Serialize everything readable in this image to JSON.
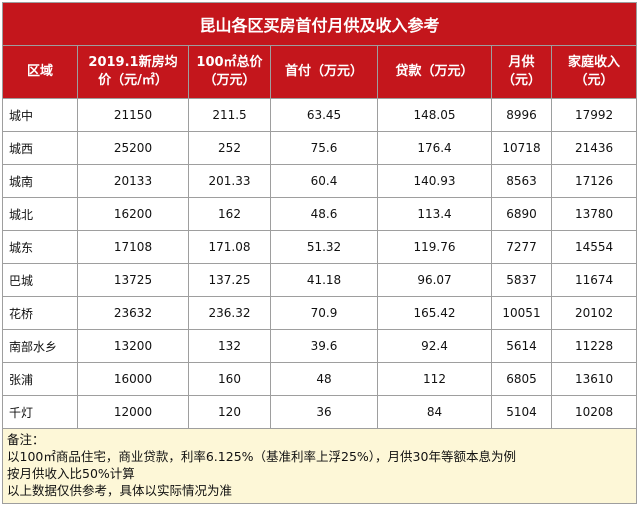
{
  "title": "昆山各区买房首付月供及收入参考",
  "headers": {
    "region": "区域",
    "price_line1": "2019.1新房均",
    "price_line2": "价（元/㎡）",
    "total_line1": "100㎡总价",
    "total_line2": "（万元）",
    "down": "首付（万元）",
    "loan": "贷款（万元）",
    "monthly_line1": "月供",
    "monthly_line2": "（元）",
    "income_line1": "家庭收入",
    "income_line2": "（元）"
  },
  "rows": [
    {
      "name": "城中",
      "price": "21150",
      "total": "211.5",
      "down": "63.45",
      "loan": "148.05",
      "monthly": "8996",
      "income": "17992"
    },
    {
      "name": "城西",
      "price": "25200",
      "total": "252",
      "down": "75.6",
      "loan": "176.4",
      "monthly": "10718",
      "income": "21436"
    },
    {
      "name": "城南",
      "price": "20133",
      "total": "201.33",
      "down": "60.4",
      "loan": "140.93",
      "monthly": "8563",
      "income": "17126"
    },
    {
      "name": "城北",
      "price": "16200",
      "total": "162",
      "down": "48.6",
      "loan": "113.4",
      "monthly": "6890",
      "income": "13780"
    },
    {
      "name": "城东",
      "price": "17108",
      "total": "171.08",
      "down": "51.32",
      "loan": "119.76",
      "monthly": "7277",
      "income": "14554"
    },
    {
      "name": "巴城",
      "price": "13725",
      "total": "137.25",
      "down": "41.18",
      "loan": "96.07",
      "monthly": "5837",
      "income": "11674"
    },
    {
      "name": "花桥",
      "price": "23632",
      "total": "236.32",
      "down": "70.9",
      "loan": "165.42",
      "monthly": "10051",
      "income": "20102"
    },
    {
      "name": "南部水乡",
      "price": "13200",
      "total": "132",
      "down": "39.6",
      "loan": "92.4",
      "monthly": "5614",
      "income": "11228"
    },
    {
      "name": "张浦",
      "price": "16000",
      "total": "160",
      "down": "48",
      "loan": "112",
      "monthly": "6805",
      "income": "13610"
    },
    {
      "name": "千灯",
      "price": "12000",
      "total": "120",
      "down": "36",
      "loan": "84",
      "monthly": "5104",
      "income": "10208"
    }
  ],
  "notes": {
    "label": "备注：",
    "line1": "以100㎡商品住宅，商业贷款，利率6.125%（基准利率上浮25%），月供30年等额本息为例",
    "line2": "按月供收入比50%计算",
    "line3": "以上数据仅供参考，具体以实际情况为准"
  },
  "colors": {
    "header_bg": "#c4161c",
    "header_text": "#ffffff",
    "notes_bg": "#fdf7d7",
    "border": "#9e9e9e"
  }
}
